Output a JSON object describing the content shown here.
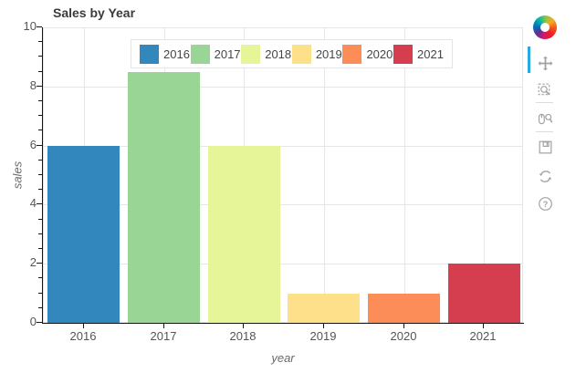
{
  "title": "Sales by Year",
  "chart_data": {
    "type": "bar",
    "title": "Sales by Year",
    "categories": [
      "2016",
      "2017",
      "2018",
      "2019",
      "2020",
      "2021"
    ],
    "values": [
      6,
      8.5,
      6,
      1,
      1,
      2
    ],
    "bar_colors": [
      "#3288bd",
      "#99d594",
      "#e6f598",
      "#fee08b",
      "#fc8d59",
      "#d53e4f"
    ],
    "xlabel": "year",
    "ylabel": "sales",
    "ylim": [
      0,
      10
    ],
    "yticks": [
      0,
      2,
      4,
      6,
      8,
      10
    ],
    "minor_tick_step": 0.5,
    "grid": true,
    "legend": {
      "position": "top-center",
      "entries": [
        {
          "label": "2016",
          "color": "#3288bd"
        },
        {
          "label": "2017",
          "color": "#99d594"
        },
        {
          "label": "2018",
          "color": "#e6f598"
        },
        {
          "label": "2019",
          "color": "#fee08b"
        },
        {
          "label": "2020",
          "color": "#fc8d59"
        },
        {
          "label": "2021",
          "color": "#d53e4f"
        }
      ]
    }
  },
  "toolbar": {
    "orientation": "vertical",
    "active_tool": "pan",
    "active_color": "#26aae1",
    "icon_color": "#a2a2a2",
    "buttons": [
      {
        "name": "pan",
        "icon": "move-icon",
        "active": true
      },
      {
        "name": "box-zoom",
        "icon": "box-zoom-icon",
        "active": false
      },
      {
        "name": "wheel-zoom",
        "icon": "wheel-zoom-icon",
        "active": false
      },
      {
        "name": "save",
        "icon": "save-icon",
        "active": false
      },
      {
        "name": "reset",
        "icon": "reset-icon",
        "active": false
      },
      {
        "name": "help",
        "icon": "help-icon",
        "active": false
      }
    ]
  }
}
